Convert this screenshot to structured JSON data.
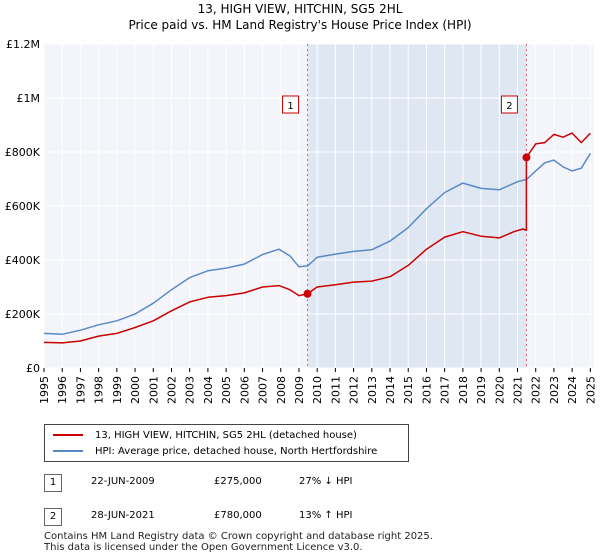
{
  "title_line1": "13, HIGH VIEW, HITCHIN, SG5 2HL",
  "title_line2": "Price paid vs. HM Land Registry's House Price Index (HPI)",
  "chart_data": {
    "type": "line",
    "xlim": [
      1995.0,
      2025.2
    ],
    "ylim": [
      0,
      1200000
    ],
    "yticks": [
      0,
      200000,
      400000,
      600000,
      800000,
      1000000,
      1200000
    ],
    "ytick_labels": [
      "£0",
      "£200K",
      "£400K",
      "£600K",
      "£800K",
      "£1M",
      "£1.2M"
    ],
    "xticks": [
      1995,
      1996,
      1997,
      1998,
      1999,
      2000,
      2001,
      2002,
      2003,
      2004,
      2005,
      2006,
      2007,
      2008,
      2009,
      2010,
      2011,
      2012,
      2013,
      2014,
      2015,
      2016,
      2017,
      2018,
      2019,
      2020,
      2021,
      2022,
      2023,
      2024,
      2025
    ],
    "shaded_span": [
      2009.47,
      2021.49
    ],
    "series": [
      {
        "name": "13, HIGH VIEW, HITCHIN, SG5 2HL (detached house)",
        "color": "#cc0000",
        "x": [
          1995.0,
          1996.0,
          1997.0,
          1998.0,
          1999.0,
          2000.0,
          2001.0,
          2002.0,
          2003.0,
          2004.0,
          2005.0,
          2006.0,
          2007.0,
          2007.9,
          2008.5,
          2009.0,
          2009.47,
          2010.0,
          2011.0,
          2012.0,
          2013.0,
          2014.0,
          2015.0,
          2016.0,
          2017.0,
          2018.0,
          2019.0,
          2020.0,
          2020.8,
          2021.3,
          2021.49,
          2021.49,
          2022.0,
          2022.5,
          2023.0,
          2023.5,
          2024.0,
          2024.5,
          2025.0
        ],
        "y": [
          95000,
          93000,
          100000,
          118000,
          128000,
          150000,
          175000,
          212000,
          245000,
          262000,
          268000,
          278000,
          300000,
          305000,
          290000,
          268000,
          275000,
          300000,
          308000,
          318000,
          322000,
          338000,
          380000,
          440000,
          485000,
          505000,
          488000,
          482000,
          505000,
          515000,
          510000,
          780000,
          830000,
          835000,
          865000,
          855000,
          870000,
          835000,
          870000
        ]
      },
      {
        "name": "HPI: Average price, detached house, North Hertfordshire",
        "color": "#5a8ac6",
        "x": [
          1995.0,
          1996.0,
          1997.0,
          1998.0,
          1999.0,
          2000.0,
          2001.0,
          2002.0,
          2003.0,
          2004.0,
          2005.0,
          2006.0,
          2007.0,
          2007.9,
          2008.5,
          2009.0,
          2009.47,
          2010.0,
          2011.0,
          2012.0,
          2013.0,
          2014.0,
          2015.0,
          2016.0,
          2017.0,
          2018.0,
          2019.0,
          2020.0,
          2021.0,
          2021.49,
          2022.0,
          2022.5,
          2023.0,
          2023.5,
          2024.0,
          2024.5,
          2025.0
        ],
        "y": [
          128000,
          125000,
          140000,
          160000,
          175000,
          200000,
          240000,
          290000,
          335000,
          360000,
          370000,
          385000,
          420000,
          440000,
          415000,
          375000,
          378000,
          410000,
          422000,
          432000,
          438000,
          470000,
          520000,
          590000,
          650000,
          685000,
          665000,
          660000,
          690000,
          698000,
          730000,
          760000,
          770000,
          745000,
          730000,
          740000,
          795000
        ]
      }
    ],
    "sales": [
      {
        "label": "1",
        "x": 2009.47,
        "y": 275000
      },
      {
        "label": "2",
        "x": 2021.49,
        "y": 780000
      }
    ]
  },
  "legend": [
    {
      "label": "13, HIGH VIEW, HITCHIN, SG5 2HL (detached house)",
      "color": "#cc0000"
    },
    {
      "label": "HPI: Average price, detached house, North Hertfordshire",
      "color": "#5a8ac6"
    }
  ],
  "transactions": [
    {
      "num": "1",
      "date": "22-JUN-2009",
      "price": "£275,000",
      "hpi": "27% ↓ HPI"
    },
    {
      "num": "2",
      "date": "28-JUN-2021",
      "price": "£780,000",
      "hpi": "13% ↑ HPI"
    }
  ],
  "footer_line1": "Contains HM Land Registry data © Crown copyright and database right 2025.",
  "footer_line2": "This data is licensed under the Open Government Licence v3.0."
}
